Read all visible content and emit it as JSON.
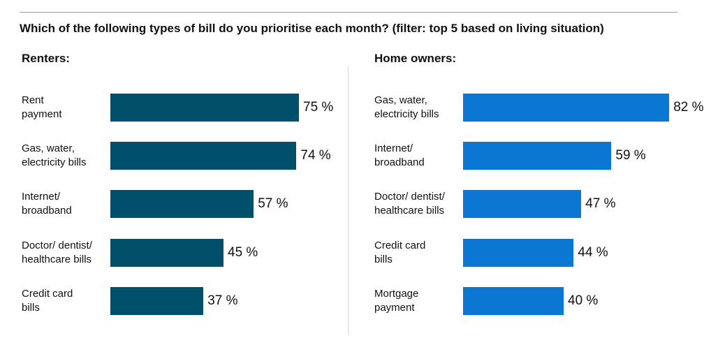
{
  "title": "Which of the following types of bill do you prioritise each month? (filter: top 5 based on living situation)",
  "chart_data": [
    {
      "type": "bar",
      "orientation": "horizontal",
      "title": "Renters:",
      "color": "#004f6b",
      "unit": "%",
      "categories": [
        "Rent\npayment",
        "Gas, water,\nelectricity bills",
        "Internet/\nbroadband",
        "Doctor/ dentist/\nhealthcare bills",
        "Credit card\nbills"
      ],
      "values": [
        75,
        74,
        57,
        45,
        37
      ],
      "value_labels": [
        "75 %",
        "74 %",
        "57 %",
        "45 %",
        "37 %"
      ],
      "xlim": [
        0,
        100
      ],
      "grid": false,
      "legend": "none"
    },
    {
      "type": "bar",
      "orientation": "horizontal",
      "title": "Home owners:",
      "color": "#0b77d3",
      "unit": "%",
      "categories": [
        "Gas, water,\nelectricity bills",
        "Internet/\nbroadband",
        "Doctor/ dentist/\nhealthcare bills",
        "Credit card\nbills",
        "Mortgage\npayment"
      ],
      "values": [
        82,
        59,
        47,
        44,
        40
      ],
      "value_labels": [
        "82 %",
        "59 %",
        "47 %",
        "44 %",
        "40 %"
      ],
      "xlim": [
        0,
        100
      ],
      "grid": false,
      "legend": "none"
    }
  ]
}
